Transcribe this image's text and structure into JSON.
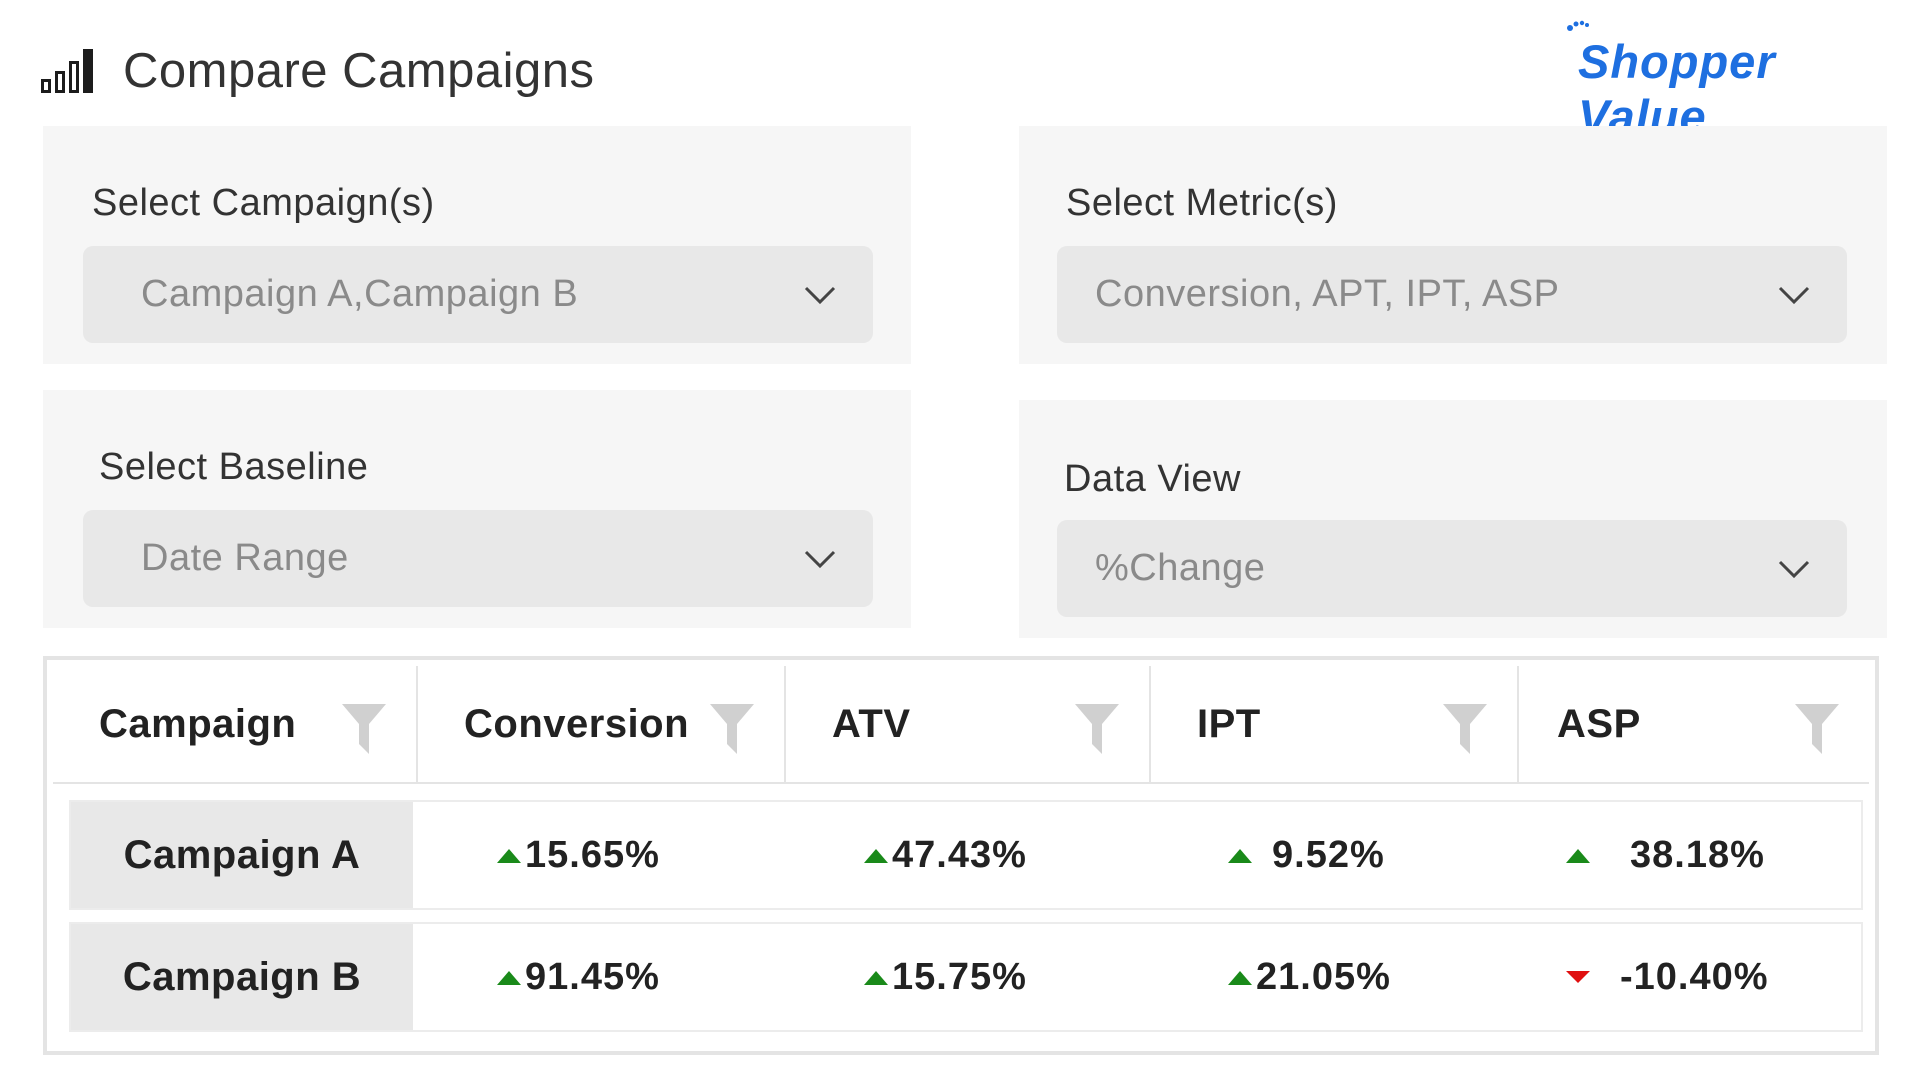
{
  "header": {
    "title": "Compare Campaigns",
    "icon": "bar-chart-icon"
  },
  "logo": {
    "text": "Shopper Value",
    "color": "#1e6fe0"
  },
  "filters": {
    "campaigns": {
      "label": "Select Campaign(s)",
      "value": "Campaign A,Campaign B"
    },
    "metrics": {
      "label": "Select Metric(s)",
      "value": "Conversion, APT, IPT, ASP"
    },
    "baseline": {
      "label": "Select Baseline",
      "value": "Date Range"
    },
    "data_view": {
      "label": "Data View",
      "value": "%Change"
    }
  },
  "table": {
    "columns": [
      "Campaign",
      "Conversion",
      "ATV",
      "IPT",
      "ASP"
    ],
    "rows": [
      {
        "name": "Campaign A",
        "cells": [
          {
            "value": "15.65%",
            "trend": "up"
          },
          {
            "value": "47.43%",
            "trend": "up"
          },
          {
            "value": "9.52%",
            "trend": "up"
          },
          {
            "value": "38.18%",
            "trend": "up"
          }
        ]
      },
      {
        "name": "Campaign B",
        "cells": [
          {
            "value": "91.45%",
            "trend": "up"
          },
          {
            "value": "15.75%",
            "trend": "up"
          },
          {
            "value": "21.05%",
            "trend": "up"
          },
          {
            "value": "-10.40%",
            "trend": "down"
          }
        ]
      }
    ]
  },
  "colors": {
    "up": "#1a8a1a",
    "down": "#e01010",
    "brand": "#1e6fe0"
  }
}
